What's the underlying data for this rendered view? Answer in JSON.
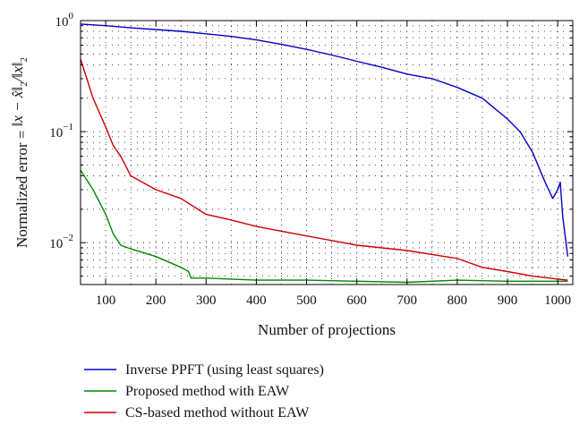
{
  "chart_data": {
    "type": "line",
    "title": "",
    "xlabel": "Number of projections",
    "ylabel_parts": [
      "Normalized error = ",
      "‖x − x̂‖",
      "2",
      "/‖x‖",
      "2"
    ],
    "x_scale": "linear",
    "y_scale": "log",
    "xlim": [
      50,
      1030
    ],
    "ylim": [
      0.0042,
      1.0
    ],
    "x_ticks": [
      100,
      200,
      300,
      400,
      500,
      600,
      700,
      800,
      900,
      1000
    ],
    "y_ticks": [
      {
        "value": 1.0,
        "base": "10",
        "exp": "0"
      },
      {
        "value": 0.1,
        "base": "10",
        "exp": "−1"
      },
      {
        "value": 0.01,
        "base": "10",
        "exp": "−2"
      }
    ],
    "grid": true,
    "legend_position": "bottom",
    "series": [
      {
        "name": "Inverse PPFT (using least squares)",
        "color": "#0000cc",
        "x": [
          50,
          100,
          150,
          200,
          250,
          300,
          350,
          400,
          450,
          500,
          550,
          600,
          650,
          700,
          750,
          800,
          850,
          900,
          925,
          950,
          975,
          990,
          1000,
          1005,
          1010,
          1020
        ],
        "y": [
          0.93,
          0.9,
          0.86,
          0.83,
          0.8,
          0.76,
          0.72,
          0.67,
          0.61,
          0.55,
          0.49,
          0.43,
          0.38,
          0.33,
          0.3,
          0.25,
          0.2,
          0.13,
          0.1,
          0.065,
          0.035,
          0.025,
          0.03,
          0.035,
          0.017,
          0.0075
        ]
      },
      {
        "name": "Proposed method with EAW",
        "color": "#008800",
        "x": [
          50,
          75,
          100,
          115,
          130,
          150,
          200,
          250,
          265,
          270,
          300,
          400,
          500,
          600,
          700,
          800,
          900,
          1000,
          1020
        ],
        "y": [
          0.045,
          0.03,
          0.018,
          0.012,
          0.0095,
          0.0088,
          0.0075,
          0.006,
          0.0055,
          0.0048,
          0.0048,
          0.0046,
          0.0046,
          0.0045,
          0.0044,
          0.0046,
          0.0045,
          0.0045,
          0.0045
        ]
      },
      {
        "name": "CS-based method without EAW",
        "color": "#cc0000",
        "x": [
          50,
          75,
          100,
          115,
          130,
          150,
          200,
          250,
          300,
          350,
          400,
          500,
          600,
          700,
          800,
          850,
          900,
          950,
          1000,
          1020
        ],
        "y": [
          0.45,
          0.2,
          0.11,
          0.075,
          0.06,
          0.04,
          0.03,
          0.025,
          0.018,
          0.016,
          0.014,
          0.0115,
          0.0095,
          0.0085,
          0.0072,
          0.006,
          0.0055,
          0.005,
          0.0047,
          0.0046
        ]
      }
    ]
  }
}
